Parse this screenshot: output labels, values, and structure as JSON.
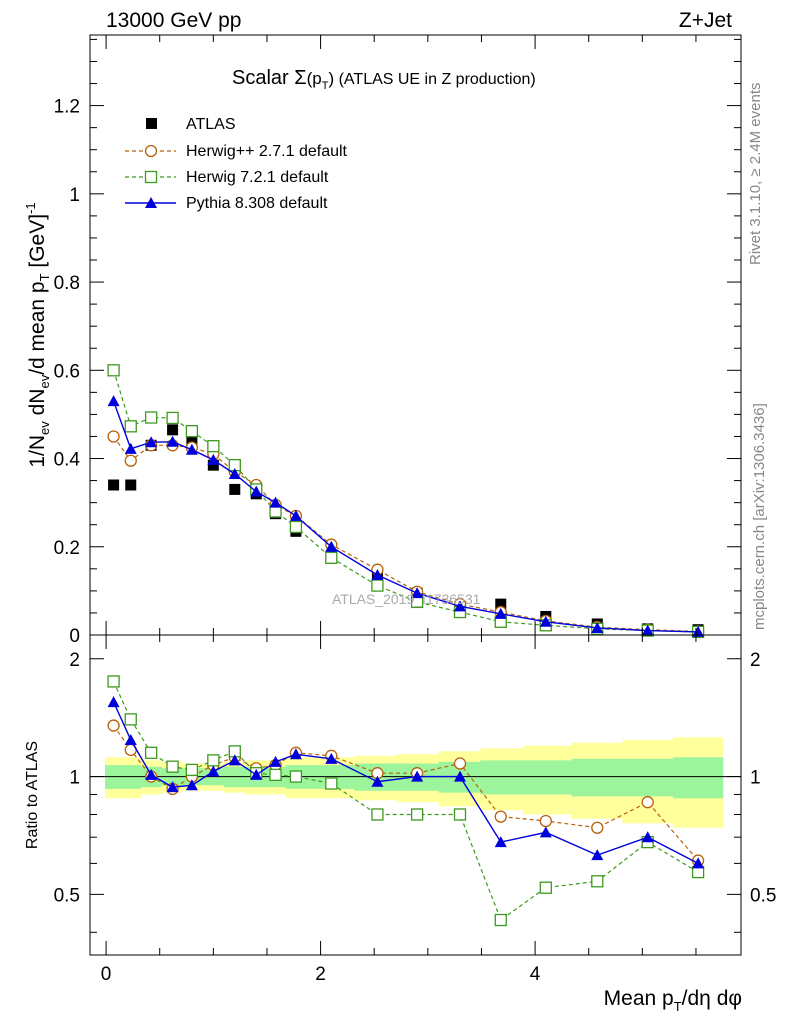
{
  "header": {
    "energy_label": "13000 GeV pp",
    "process_label": "Z+Jet"
  },
  "side_labels": {
    "rivet": "Rivet 3.1.10, ≥ 2.4M events",
    "mcplots": "mcplots.cern.ch [arXiv:1306.3436]"
  },
  "watermark": "ATLAS_2019_I1736531",
  "colors": {
    "atlas": "#000000",
    "herwig_pp": "#b8600a",
    "herwig7": "#3c9a1e",
    "pythia": "#0000dd",
    "band_inner": "#9cf59c",
    "band_outer": "#ffff9c"
  },
  "chart_data": [
    {
      "type": "scatter",
      "title_main": "Scalar ",
      "title_sigma": "Σ",
      "title_paren_open": "(p",
      "title_sub": "T",
      "title_paren_close": ")",
      "title_rest": " (ATLAS UE in Z production)",
      "ylabel": "1/N_ev dN_ev/d mean p_T [GeV]^-1",
      "ylabel_parts": {
        "p1": "1/N",
        "s1": "ev",
        "p2": " dN",
        "s2": "ev",
        "p3": "/d mean p",
        "s3": "T",
        "p4": " [GeV]",
        "sup": "-1"
      },
      "xlim": [
        -0.15,
        5.92
      ],
      "ylim": [
        0,
        1.36
      ],
      "yticks": [
        0,
        0.2,
        0.4,
        0.6,
        0.8,
        1,
        1.2
      ],
      "yticklabels": [
        "0",
        "0.2",
        "0.4",
        "0.6",
        "0.8",
        "1",
        "1.2"
      ],
      "legend_position": "top-left",
      "x": [
        0.07,
        0.23,
        0.42,
        0.62,
        0.8,
        1.0,
        1.2,
        1.4,
        1.58,
        1.77,
        2.1,
        2.53,
        2.9,
        3.3,
        3.68,
        4.1,
        4.58,
        5.05,
        5.52
      ],
      "series": [
        {
          "name": "ATLAS",
          "key": "atlas",
          "marker": "square-filled",
          "values": [
            0.34,
            0.34,
            0.43,
            0.465,
            0.44,
            0.385,
            0.33,
            0.32,
            0.275,
            0.235,
            0.18,
            0.14,
            0.095,
            0.065,
            0.07,
            0.042,
            0.025,
            0.014,
            0.012
          ]
        },
        {
          "name": "Herwig++ 2.7.1 default",
          "key": "herwig_pp",
          "marker": "circle-open",
          "values": [
            0.45,
            0.395,
            0.43,
            0.43,
            0.425,
            0.41,
            0.37,
            0.34,
            0.295,
            0.27,
            0.205,
            0.148,
            0.098,
            0.07,
            0.052,
            0.032,
            0.018,
            0.012,
            0.008
          ]
        },
        {
          "name": "Herwig 7.2.1 default",
          "key": "herwig7",
          "marker": "square-open",
          "values": [
            0.6,
            0.473,
            0.493,
            0.492,
            0.462,
            0.428,
            0.385,
            0.33,
            0.28,
            0.245,
            0.175,
            0.112,
            0.075,
            0.052,
            0.03,
            0.022,
            0.014,
            0.01,
            0.007
          ]
        },
        {
          "name": "Pythia 8.308 default",
          "key": "pythia",
          "marker": "triangle-filled",
          "values": [
            0.53,
            0.422,
            0.437,
            0.438,
            0.42,
            0.397,
            0.365,
            0.325,
            0.3,
            0.27,
            0.2,
            0.136,
            0.095,
            0.065,
            0.048,
            0.03,
            0.016,
            0.01,
            0.007
          ]
        }
      ]
    },
    {
      "type": "scatter",
      "ylabel": "Ratio to ATLAS",
      "xlabel": "Mean p_T/dη dφ",
      "xlabel_parts": {
        "p1": "Mean p",
        "s1": "T",
        "p2": "/dη dφ"
      },
      "xlim": [
        -0.15,
        5.92
      ],
      "ylim": [
        0.35,
        2.3
      ],
      "xticks": [
        0,
        2,
        4
      ],
      "xticklabels": [
        "0",
        "2",
        "4"
      ],
      "yticks": [
        0.5,
        1,
        2
      ],
      "yticklabels": [
        "0.5",
        "1",
        "2"
      ],
      "reference_line": 1,
      "x": [
        0.07,
        0.23,
        0.42,
        0.62,
        0.8,
        1.0,
        1.2,
        1.4,
        1.58,
        1.77,
        2.1,
        2.53,
        2.9,
        3.3,
        3.68,
        4.1,
        4.58,
        5.05,
        5.52
      ],
      "band_inner_halfwidth": [
        0.07,
        0.07,
        0.06,
        0.05,
        0.05,
        0.05,
        0.06,
        0.06,
        0.06,
        0.07,
        0.07,
        0.08,
        0.08,
        0.09,
        0.1,
        0.1,
        0.11,
        0.11,
        0.12
      ],
      "band_outer_halfwidth": [
        0.12,
        0.12,
        0.1,
        0.09,
        0.08,
        0.08,
        0.09,
        0.1,
        0.1,
        0.12,
        0.12,
        0.13,
        0.14,
        0.16,
        0.18,
        0.2,
        0.22,
        0.24,
        0.26
      ],
      "series": [
        {
          "name": "Herwig++ 2.7.1 default",
          "key": "herwig_pp",
          "marker": "circle-open",
          "values": [
            1.35,
            1.17,
            1.0,
            0.93,
            1.0,
            1.07,
            1.12,
            1.05,
            1.07,
            1.15,
            1.13,
            1.02,
            1.02,
            1.08,
            0.79,
            0.77,
            0.74,
            0.86,
            0.61
          ]
        },
        {
          "name": "Herwig 7.2.1 default",
          "key": "herwig7",
          "marker": "square-open",
          "values": [
            1.75,
            1.4,
            1.15,
            1.06,
            1.04,
            1.1,
            1.16,
            1.02,
            1.01,
            1.0,
            0.96,
            0.8,
            0.8,
            0.8,
            0.43,
            0.52,
            0.54,
            0.68,
            0.57
          ]
        },
        {
          "name": "Pythia 8.308 default",
          "key": "pythia",
          "marker": "triangle-filled",
          "values": [
            1.55,
            1.24,
            1.01,
            0.94,
            0.95,
            1.03,
            1.1,
            1.01,
            1.09,
            1.14,
            1.11,
            0.97,
            1.0,
            1.0,
            0.68,
            0.72,
            0.63,
            0.7,
            0.6
          ]
        }
      ]
    }
  ]
}
